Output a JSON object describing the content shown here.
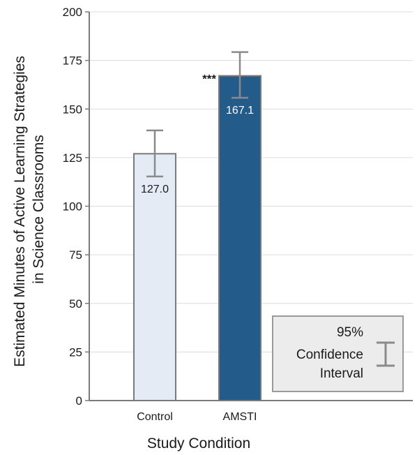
{
  "chart_data": {
    "type": "bar",
    "categories": [
      "Control",
      "AMSTI"
    ],
    "values": [
      127.0,
      167.1
    ],
    "value_labels": [
      "127.0",
      "167.1"
    ],
    "error_bars": [
      {
        "low": 115.3,
        "high": 139.0
      },
      {
        "low": 155.8,
        "high": 179.3
      }
    ],
    "significance": [
      "",
      "***"
    ],
    "xlabel": "Study Condition",
    "ylabel_lines": [
      "Estimated Minutes of Active Learning Strategies",
      "in Science Classrooms"
    ],
    "ylim": [
      0,
      200
    ],
    "yticks": [
      0,
      25,
      50,
      75,
      100,
      125,
      150,
      175,
      200
    ],
    "grid": true,
    "legend": {
      "placement": "bottom-right",
      "lines": [
        "95%",
        "Confidence",
        "Interval"
      ]
    },
    "colors": {
      "bars": [
        "#e4ebf5",
        "#235b8a"
      ],
      "bar_stroke": "#7a7a7a",
      "value_label": [
        "#1a1a1a",
        "#ffffff"
      ],
      "error_bar": "#8a8a8a",
      "grid": "#dcdcdc",
      "axis": "#7a7a7a",
      "legend_bg": "#ececec",
      "legend_border": "#9a9a9a"
    }
  }
}
